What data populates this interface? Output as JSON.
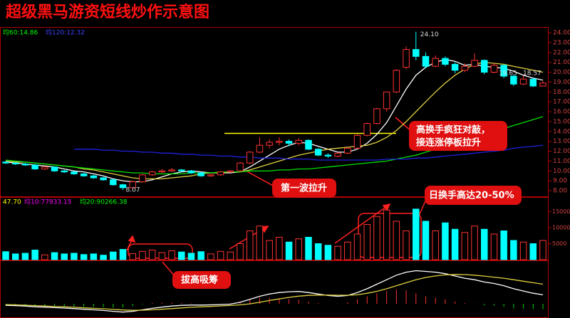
{
  "chart_data": {
    "type": "candlestick",
    "title": "超级黑马游资短线炒作示意图",
    "price_header": [
      {
        "text": "均60:14.86",
        "color": "#00ff00"
      },
      {
        "text": "均120:12.32",
        "color": "#4040ff"
      }
    ],
    "volume_header": [
      {
        "text": "47.70",
        "color": "#ffff00"
      },
      {
        "text": "均10:77933.15",
        "color": "#ff00ff"
      },
      {
        "text": "均20:90266.38",
        "color": "#00ff00"
      }
    ],
    "high_label": "24.10",
    "low_label": "8.07",
    "end_labels": [
      "19.65",
      "18.57"
    ],
    "annotations": [
      "高换手疯狂对敲，",
      "接连涨停板拉升",
      "第一波拉升",
      "日换手高达20-50%",
      "拔高吸筹"
    ],
    "up_color": "#ff3232",
    "down_color": "#00ffff",
    "candles": [
      [
        10.9,
        11.0,
        10.7,
        10.8
      ],
      [
        10.8,
        10.9,
        10.6,
        10.7
      ],
      [
        10.7,
        10.8,
        10.5,
        10.6
      ],
      [
        10.6,
        10.7,
        10.1,
        10.2
      ],
      [
        10.2,
        10.5,
        10.1,
        10.4
      ],
      [
        10.4,
        10.4,
        9.9,
        10.0
      ],
      [
        10.0,
        10.1,
        9.8,
        9.9
      ],
      [
        9.9,
        10.0,
        9.6,
        9.7
      ],
      [
        9.7,
        9.8,
        9.4,
        9.5
      ],
      [
        9.5,
        9.6,
        9.2,
        9.3
      ],
      [
        9.3,
        9.4,
        9.0,
        9.1
      ],
      [
        9.1,
        9.2,
        8.5,
        8.6
      ],
      [
        8.6,
        8.7,
        8.07,
        8.3
      ],
      [
        8.3,
        9.0,
        8.2,
        8.9
      ],
      [
        8.9,
        9.7,
        8.8,
        9.6
      ],
      [
        9.6,
        10.0,
        9.5,
        9.9
      ],
      [
        9.9,
        10.2,
        9.8,
        10.0
      ],
      [
        10.0,
        10.3,
        9.9,
        10.1
      ],
      [
        10.1,
        10.2,
        9.9,
        10.0
      ],
      [
        10.0,
        10.1,
        9.7,
        9.8
      ],
      [
        9.8,
        9.9,
        9.4,
        9.5
      ],
      [
        9.5,
        9.7,
        9.4,
        9.6
      ],
      [
        9.6,
        10.0,
        9.5,
        9.9
      ],
      [
        9.9,
        10.1,
        9.8,
        10.0
      ],
      [
        10.0,
        10.9,
        9.9,
        10.8
      ],
      [
        10.8,
        12.0,
        10.7,
        11.9
      ],
      [
        11.9,
        13.4,
        11.8,
        12.6
      ],
      [
        12.6,
        13.2,
        12.3,
        12.9
      ],
      [
        12.9,
        13.4,
        12.6,
        13.0
      ],
      [
        13.0,
        13.2,
        12.5,
        12.8
      ],
      [
        12.8,
        13.3,
        12.6,
        13.1
      ],
      [
        13.1,
        13.2,
        12.1,
        12.2
      ],
      [
        12.2,
        12.3,
        11.5,
        11.6
      ],
      [
        11.6,
        11.8,
        11.3,
        11.5
      ],
      [
        11.5,
        11.9,
        11.4,
        11.8
      ],
      [
        11.8,
        12.4,
        11.7,
        12.3
      ],
      [
        12.3,
        13.7,
        12.2,
        13.6
      ],
      [
        13.6,
        14.9,
        13.5,
        14.8
      ],
      [
        14.8,
        16.4,
        14.7,
        16.3
      ],
      [
        16.3,
        18.0,
        16.0,
        18.0
      ],
      [
        18.0,
        20.3,
        17.9,
        20.2
      ],
      [
        20.5,
        22.6,
        20.3,
        22.3
      ],
      [
        22.3,
        24.1,
        21.2,
        21.6
      ],
      [
        21.6,
        22.0,
        20.4,
        20.6
      ],
      [
        20.6,
        21.7,
        20.5,
        21.4
      ],
      [
        21.4,
        21.6,
        20.6,
        20.8
      ],
      [
        20.8,
        21.0,
        19.9,
        20.2
      ],
      [
        20.2,
        20.9,
        20.0,
        20.6
      ],
      [
        20.6,
        21.9,
        20.5,
        21.2
      ],
      [
        21.2,
        21.3,
        19.8,
        20.0
      ],
      [
        20.0,
        20.9,
        19.9,
        20.7
      ],
      [
        20.7,
        20.8,
        19.4,
        19.6
      ],
      [
        19.6,
        19.7,
        18.6,
        18.8
      ],
      [
        18.8,
        19.65,
        18.7,
        19.3
      ],
      [
        19.3,
        19.4,
        18.5,
        18.6
      ],
      [
        18.6,
        19.1,
        18.57,
        18.9
      ]
    ],
    "ma_lines": [
      {
        "color": "#ffffff",
        "values": [
          10.9,
          10.8,
          10.7,
          10.6,
          10.5,
          10.4,
          10.2,
          10.0,
          9.9,
          9.7,
          9.5,
          9.2,
          9.0,
          8.9,
          8.9,
          9.1,
          9.4,
          9.7,
          9.9,
          10.0,
          9.9,
          9.8,
          9.8,
          9.8,
          9.9,
          10.4,
          11.0,
          11.6,
          12.2,
          12.6,
          12.9,
          12.8,
          12.5,
          12.2,
          11.9,
          11.9,
          12.2,
          12.8,
          13.7,
          14.9,
          16.6,
          18.3,
          19.7,
          20.5,
          21.0,
          21.3,
          21.1,
          20.7,
          20.8,
          20.6,
          20.5,
          20.4,
          20.1,
          19.7,
          19.4,
          19.2
        ]
      },
      {
        "color": "#e0d040",
        "values": [
          11.0,
          10.9,
          10.9,
          10.8,
          10.7,
          10.6,
          10.5,
          10.4,
          10.2,
          10.1,
          9.9,
          9.7,
          9.5,
          9.3,
          9.2,
          9.2,
          9.2,
          9.3,
          9.4,
          9.5,
          9.7,
          9.8,
          9.8,
          9.9,
          9.9,
          10.1,
          10.4,
          10.7,
          11.0,
          11.3,
          11.6,
          11.8,
          12.0,
          12.2,
          12.3,
          12.4,
          12.5,
          12.6,
          12.9,
          13.4,
          14.1,
          15.0,
          16.0,
          17.0,
          18.0,
          18.9,
          19.7,
          20.3,
          20.8,
          21.0,
          20.9,
          20.8,
          20.6,
          20.4,
          20.2,
          20.0
        ]
      },
      {
        "color": "#00e000",
        "values": [
          11.1,
          11.0,
          10.9,
          10.8,
          10.7,
          10.6,
          10.5,
          10.4,
          10.3,
          10.2,
          10.1,
          10.0,
          9.9,
          9.8,
          9.8,
          9.7,
          9.7,
          9.7,
          9.7,
          9.8,
          9.8,
          9.8,
          9.9,
          9.9,
          9.9,
          10.0,
          10.0,
          10.0,
          10.1,
          10.1,
          10.2,
          10.2,
          10.3,
          10.4,
          10.5,
          10.6,
          10.7,
          10.8,
          10.9,
          11.0,
          11.2,
          11.4,
          11.6,
          11.9,
          12.2,
          12.5,
          12.8,
          13.1,
          13.4,
          13.7,
          14.0,
          14.3,
          14.6,
          14.9,
          15.2,
          15.5
        ]
      },
      {
        "color": "#2020e0",
        "values": [
          null,
          null,
          null,
          null,
          null,
          null,
          null,
          12.2,
          12.2,
          12.2,
          12.1,
          12.1,
          12.0,
          12.0,
          11.9,
          11.9,
          11.8,
          11.8,
          11.7,
          11.7,
          11.6,
          11.6,
          11.5,
          11.5,
          11.4,
          11.4,
          11.3,
          11.3,
          11.3,
          11.2,
          11.2,
          11.2,
          11.1,
          11.1,
          11.1,
          11.1,
          11.1,
          11.1,
          11.1,
          11.2,
          11.2,
          11.2,
          11.3,
          11.3,
          11.4,
          11.5,
          11.6,
          11.7,
          11.8,
          11.9,
          12.0,
          12.1,
          12.3,
          12.4,
          12.5,
          12.6
        ]
      }
    ],
    "resistance": 13.8,
    "resistance_color": "#ffff00",
    "ylim": [
      8,
      24
    ],
    "yticks": [
      {
        "value": 8,
        "label": "8.00"
      },
      {
        "value": 9,
        "label": "9.00"
      },
      {
        "value": 10,
        "label": "10.00"
      },
      {
        "value": 11,
        "label": "11.00"
      },
      {
        "value": 12,
        "label": "12.00"
      },
      {
        "value": 13,
        "label": "13.00"
      },
      {
        "value": 14,
        "label": "14.00"
      },
      {
        "value": 15,
        "label": "15.00"
      },
      {
        "value": 16,
        "label": "16.00"
      },
      {
        "value": 17,
        "label": "17.00"
      },
      {
        "value": 18,
        "label": "18.00"
      },
      {
        "value": 19,
        "label": "19.00"
      },
      {
        "value": 20,
        "label": "20.00"
      },
      {
        "value": 21,
        "label": "21.00"
      },
      {
        "value": 22,
        "label": "22.00"
      },
      {
        "value": 23,
        "label": "23.00"
      },
      {
        "value": 24,
        "label": "24.00"
      }
    ],
    "volume": [
      2500,
      1800,
      2000,
      3000,
      1500,
      2200,
      1800,
      2000,
      1600,
      1800,
      1400,
      2400,
      3200,
      1900,
      2600,
      3000,
      2200,
      2800,
      2400,
      2000,
      2500,
      1800,
      2600,
      2400,
      5000,
      9000,
      10500,
      6000,
      7000,
      5500,
      6500,
      7000,
      5000,
      4500,
      4200,
      5500,
      8000,
      11000,
      13500,
      15500,
      12000,
      9000,
      15800,
      12000,
      9000,
      11500,
      9500,
      8500,
      10500,
      9500,
      8000,
      9000,
      6000,
      5500,
      5000,
      6000
    ],
    "vlim": [
      0,
      18000
    ],
    "vticks": [
      5000,
      10000,
      15000
    ],
    "macd_hist": [
      -0.1,
      -0.1,
      -0.12,
      -0.15,
      -0.12,
      -0.15,
      -0.15,
      -0.18,
      -0.2,
      -0.2,
      -0.22,
      -0.25,
      -0.25,
      -0.15,
      -0.05,
      0.05,
      0.08,
      0.08,
      0.06,
      0.03,
      -0.02,
      -0.02,
      0.02,
      0.04,
      0.15,
      0.3,
      0.4,
      0.4,
      0.38,
      0.3,
      0.28,
      0.15,
      0.05,
      0.0,
      0.02,
      0.1,
      0.3,
      0.5,
      0.7,
      0.85,
      0.95,
      0.9,
      0.7,
      0.5,
      0.4,
      0.3,
      0.15,
      0.05,
      0.02,
      -0.1,
      -0.12,
      -0.2,
      -0.3,
      -0.32,
      -0.35,
      -0.35
    ],
    "macd_lines": [
      {
        "color": "#ffffff",
        "values": [
          -0.1,
          -0.12,
          -0.15,
          -0.2,
          -0.22,
          -0.25,
          -0.28,
          -0.32,
          -0.36,
          -0.4,
          -0.44,
          -0.5,
          -0.55,
          -0.5,
          -0.4,
          -0.3,
          -0.22,
          -0.15,
          -0.1,
          -0.08,
          -0.08,
          -0.07,
          -0.05,
          -0.02,
          0.1,
          0.3,
          0.5,
          0.65,
          0.75,
          0.8,
          0.82,
          0.75,
          0.65,
          0.55,
          0.5,
          0.55,
          0.75,
          1.0,
          1.3,
          1.6,
          1.9,
          2.1,
          2.2,
          2.15,
          2.1,
          2.0,
          1.85,
          1.7,
          1.6,
          1.45,
          1.35,
          1.2,
          1.0,
          0.85,
          0.7,
          0.6
        ]
      },
      {
        "color": "#e0d040",
        "values": [
          -0.05,
          -0.07,
          -0.09,
          -0.12,
          -0.15,
          -0.18,
          -0.2,
          -0.23,
          -0.26,
          -0.3,
          -0.33,
          -0.37,
          -0.41,
          -0.43,
          -0.42,
          -0.4,
          -0.36,
          -0.32,
          -0.27,
          -0.23,
          -0.2,
          -0.17,
          -0.14,
          -0.11,
          -0.07,
          0.0,
          0.1,
          0.22,
          0.33,
          0.43,
          0.51,
          0.56,
          0.58,
          0.58,
          0.57,
          0.57,
          0.6,
          0.7,
          0.83,
          1.0,
          1.2,
          1.4,
          1.6,
          1.75,
          1.85,
          1.92,
          1.95,
          1.94,
          1.9,
          1.84,
          1.77,
          1.7,
          1.6,
          1.5,
          1.4,
          1.3
        ]
      }
    ],
    "macd_lim": [
      -0.8,
      2.6
    ]
  }
}
